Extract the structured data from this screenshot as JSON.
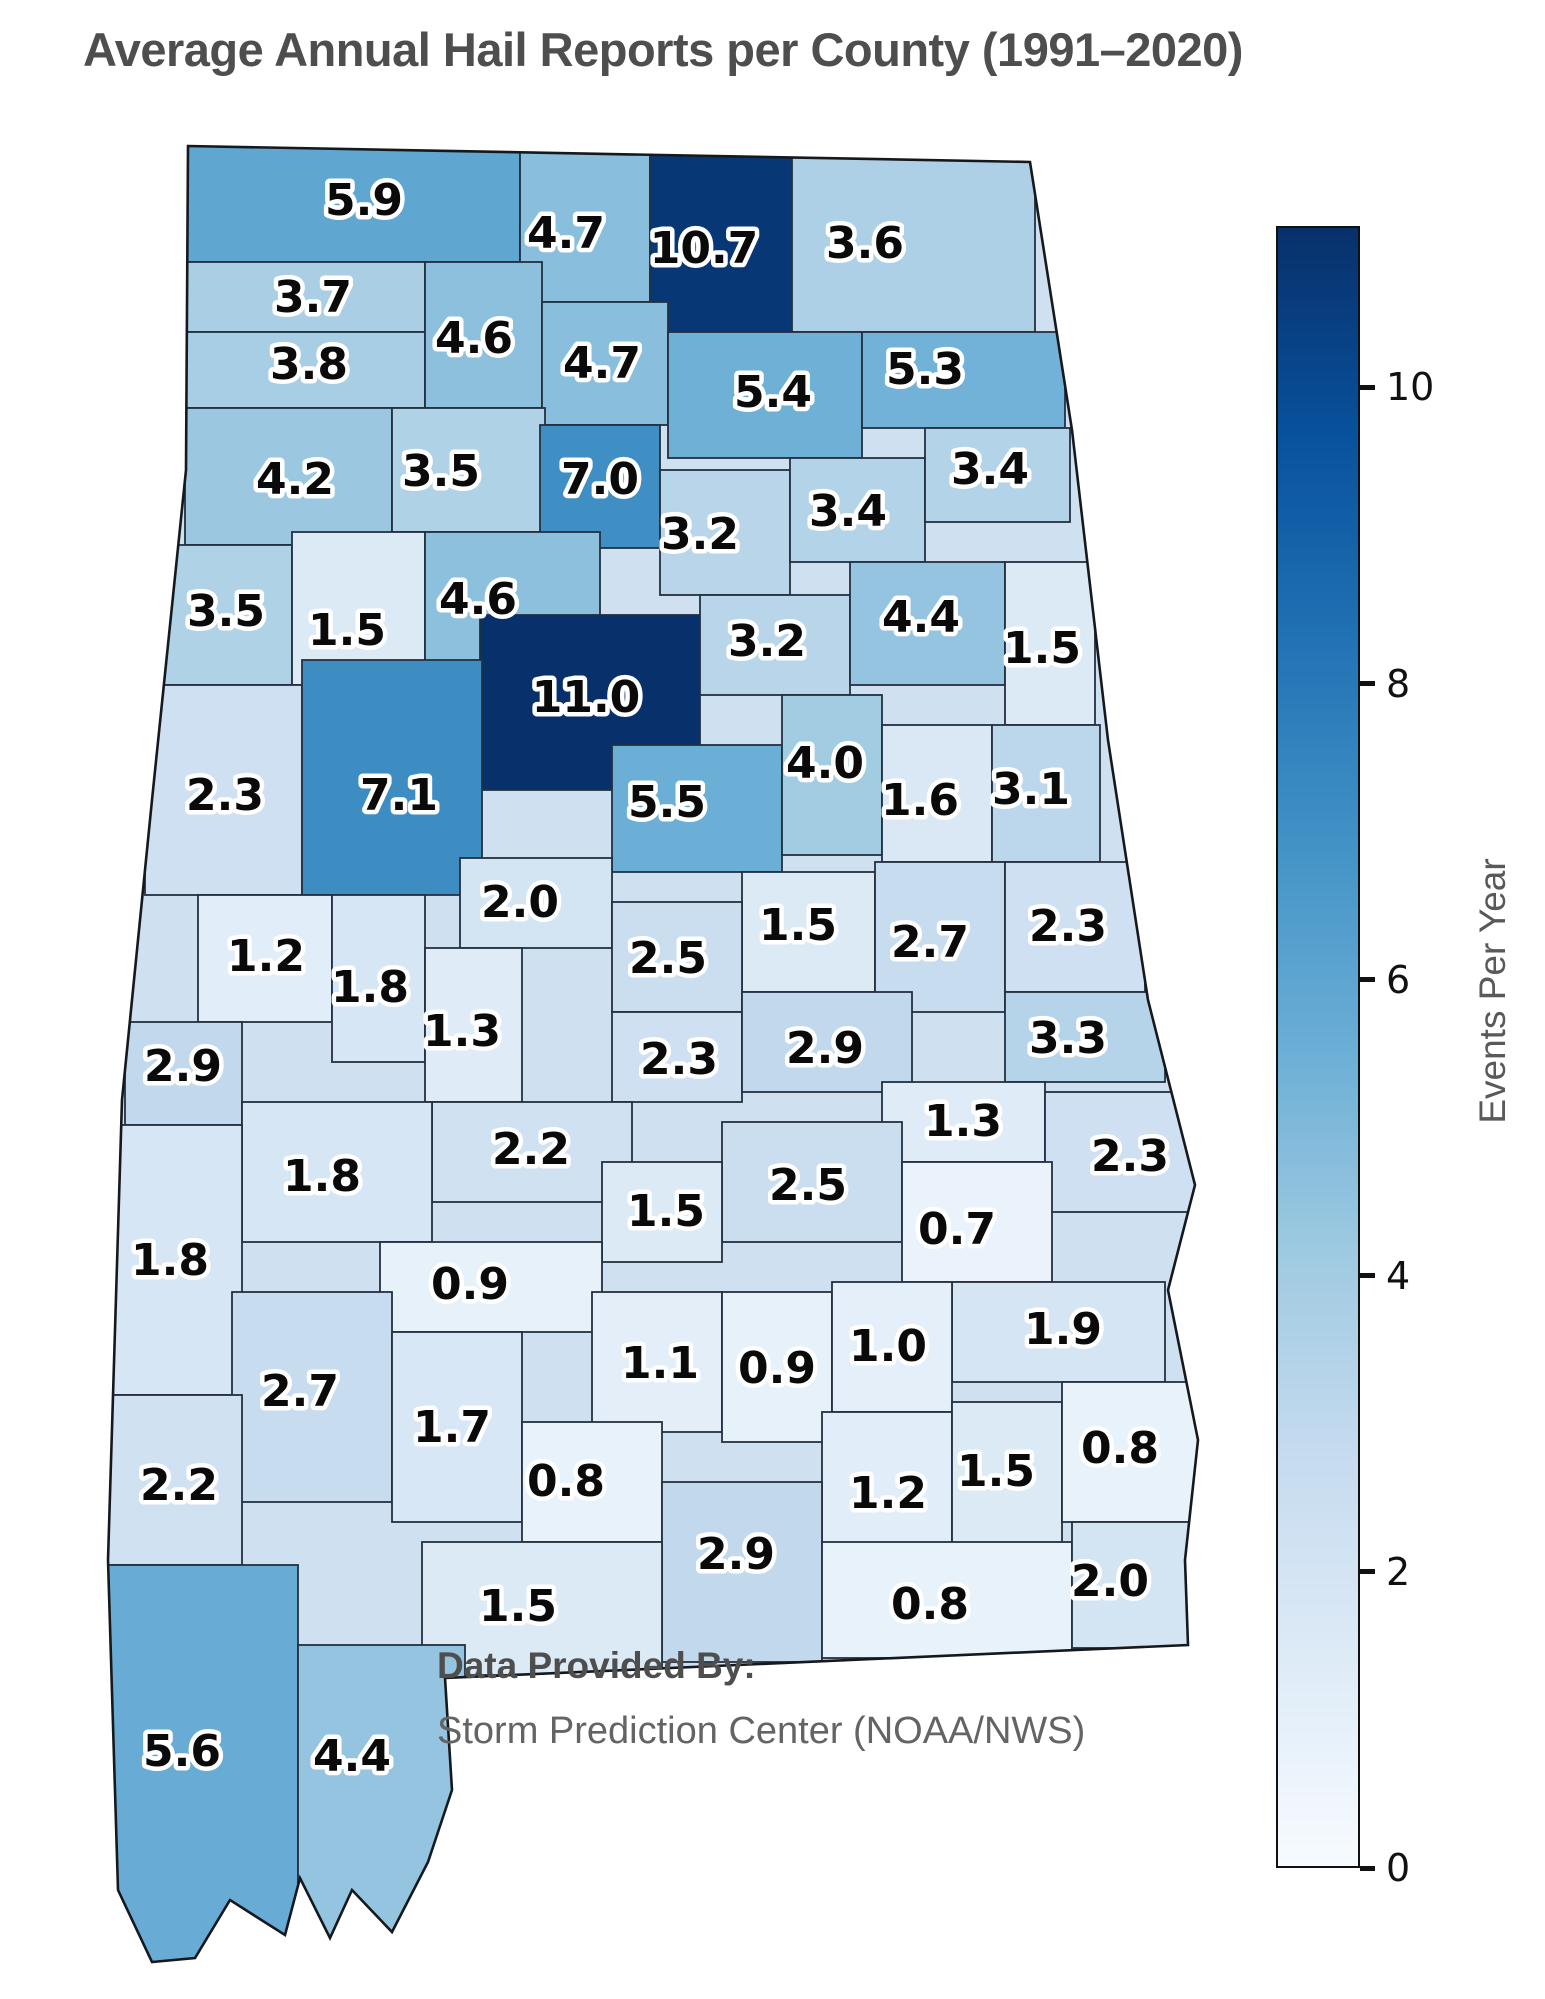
{
  "title": "Average Annual Hail Reports per County (1991–2020)",
  "attribution": {
    "label": "Data Provided By:",
    "source": "Storm Prediction Center (NOAA/NWS)"
  },
  "colorbar": {
    "label": "Events Per Year",
    "ticks": [
      0,
      2,
      4,
      6,
      8,
      10
    ],
    "min_color": "#f7fbff",
    "max_color": "#08306b"
  },
  "chart_data": {
    "type": "heatmap",
    "subtype": "choropleth",
    "region": "Alabama counties",
    "title": "Average Annual Hail Reports per County (1991–2020)",
    "value_label": "Events Per Year",
    "source": "Storm Prediction Center (NOAA/NWS)",
    "colormap": "Blues",
    "vmin": 0,
    "vmax": 11.0,
    "colorbar_ticks": [
      0,
      2,
      4,
      6,
      8,
      10
    ],
    "counties": [
      {
        "v": 5.9,
        "r": [
          150,
          140,
          370,
          122
        ],
        "l": [
          364,
          199
        ]
      },
      {
        "v": 3.7,
        "r": [
          150,
          262,
          275,
          70
        ],
        "l": [
          313,
          296
        ]
      },
      {
        "v": 3.8,
        "r": [
          150,
          332,
          275,
          76
        ],
        "l": [
          309,
          363
        ]
      },
      {
        "v": 4.7,
        "r": [
          520,
          140,
          130,
          162
        ],
        "l": [
          566,
          232
        ]
      },
      {
        "v": 10.7,
        "r": [
          650,
          140,
          142,
          195
        ],
        "l": [
          704,
          247
        ]
      },
      {
        "v": 3.6,
        "r": [
          792,
          140,
          243,
          192
        ],
        "l": [
          865,
          242
        ]
      },
      {
        "v": 4.6,
        "r": [
          425,
          262,
          117,
          146
        ],
        "l": [
          474,
          337
        ]
      },
      {
        "v": 4.7,
        "r": [
          542,
          302,
          126,
          123
        ],
        "l": [
          602,
          362
        ]
      },
      {
        "v": 5.4,
        "r": [
          668,
          332,
          194,
          126
        ],
        "l": [
          773,
          391
        ]
      },
      {
        "v": 5.3,
        "r": [
          862,
          332,
          203,
          96
        ],
        "l": [
          925,
          368
        ]
      },
      {
        "v": 4.2,
        "r": [
          185,
          408,
          207,
          137
        ],
        "l": [
          295,
          478
        ]
      },
      {
        "v": 3.5,
        "r": [
          392,
          408,
          153,
          124
        ],
        "l": [
          441,
          470
        ]
      },
      {
        "v": 7.0,
        "r": [
          540,
          425,
          120,
          123
        ],
        "l": [
          600,
          478
        ]
      },
      {
        "v": 3.2,
        "r": [
          660,
          470,
          130,
          125
        ],
        "l": [
          700,
          533
        ]
      },
      {
        "v": 3.4,
        "r": [
          790,
          458,
          135,
          104
        ],
        "l": [
          848,
          510
        ]
      },
      {
        "v": 3.4,
        "r": [
          925,
          428,
          145,
          94
        ],
        "l": [
          990,
          468
        ]
      },
      {
        "v": 3.5,
        "r": [
          160,
          545,
          132,
          140
        ],
        "l": [
          226,
          610
        ]
      },
      {
        "v": 1.5,
        "r": [
          292,
          532,
          133,
          153
        ],
        "l": [
          347,
          629
        ]
      },
      {
        "v": 4.6,
        "r": [
          425,
          532,
          175,
          133
        ],
        "l": [
          478,
          598
        ]
      },
      {
        "v": 11.0,
        "r": [
          480,
          615,
          220,
          175
        ],
        "l": [
          586,
          696
        ]
      },
      {
        "v": 3.2,
        "r": [
          700,
          595,
          150,
          100
        ],
        "l": [
          767,
          640
        ]
      },
      {
        "v": 4.4,
        "r": [
          850,
          562,
          155,
          123
        ],
        "l": [
          921,
          616
        ]
      },
      {
        "v": 1.5,
        "r": [
          1005,
          562,
          90,
          163
        ],
        "l": [
          1042,
          647
        ]
      },
      {
        "v": 2.3,
        "r": [
          145,
          685,
          157,
          210
        ],
        "l": [
          225,
          794
        ]
      },
      {
        "v": 7.1,
        "r": [
          302,
          660,
          180,
          235
        ],
        "l": [
          399,
          794
        ]
      },
      {
        "v": 5.5,
        "r": [
          612,
          745,
          170,
          127
        ],
        "l": [
          667,
          801
        ]
      },
      {
        "v": 4.0,
        "r": [
          782,
          695,
          100,
          160
        ],
        "l": [
          825,
          762
        ]
      },
      {
        "v": 1.6,
        "r": [
          882,
          725,
          110,
          137
        ],
        "l": [
          920,
          799
        ]
      },
      {
        "v": 3.1,
        "r": [
          992,
          725,
          108,
          137
        ],
        "l": [
          1031,
          788
        ]
      },
      {
        "v": 2.0,
        "r": [
          460,
          858,
          152,
          90
        ],
        "l": [
          520,
          901
        ]
      },
      {
        "v": 1.5,
        "r": [
          742,
          872,
          133,
          120
        ],
        "l": [
          798,
          924
        ]
      },
      {
        "v": 2.7,
        "r": [
          875,
          862,
          130,
          150
        ],
        "l": [
          930,
          941
        ]
      },
      {
        "v": 2.3,
        "r": [
          1005,
          862,
          140,
          130
        ],
        "l": [
          1068,
          925
        ]
      },
      {
        "v": 1.2,
        "r": [
          198,
          895,
          134,
          127
        ],
        "l": [
          266,
          955
        ]
      },
      {
        "v": 1.8,
        "r": [
          332,
          895,
          93,
          167
        ],
        "l": [
          370,
          986
        ]
      },
      {
        "v": 2.5,
        "r": [
          612,
          902,
          130,
          110
        ],
        "l": [
          668,
          957
        ]
      },
      {
        "v": 1.3,
        "r": [
          425,
          948,
          97,
          154
        ],
        "l": [
          462,
          1030
        ]
      },
      {
        "v": 2.9,
        "r": [
          125,
          1022,
          117,
          103
        ],
        "l": [
          183,
          1065
        ]
      },
      {
        "v": 2.3,
        "r": [
          612,
          1012,
          130,
          90
        ],
        "l": [
          679,
          1058
        ]
      },
      {
        "v": 2.9,
        "r": [
          742,
          992,
          170,
          100
        ],
        "l": [
          825,
          1047
        ]
      },
      {
        "v": 3.3,
        "r": [
          1005,
          992,
          160,
          90
        ],
        "l": [
          1068,
          1037
        ]
      },
      {
        "v": 1.3,
        "r": [
          882,
          1082,
          163,
          80
        ],
        "l": [
          963,
          1120
        ]
      },
      {
        "v": 2.2,
        "r": [
          432,
          1102,
          200,
          100
        ],
        "l": [
          531,
          1148
        ]
      },
      {
        "v": 2.3,
        "r": [
          1045,
          1092,
          180,
          120
        ],
        "l": [
          1130,
          1155
        ]
      },
      {
        "v": 1.8,
        "r": [
          242,
          1102,
          190,
          140
        ],
        "l": [
          322,
          1175
        ]
      },
      {
        "v": 2.5,
        "r": [
          722,
          1122,
          180,
          120
        ],
        "l": [
          808,
          1184
        ]
      },
      {
        "v": 1.5,
        "r": [
          602,
          1162,
          120,
          100
        ],
        "l": [
          666,
          1210
        ]
      },
      {
        "v": 0.7,
        "r": [
          902,
          1162,
          150,
          120
        ],
        "l": [
          957,
          1228
        ]
      },
      {
        "v": 1.8,
        "r": [
          108,
          1125,
          134,
          270
        ],
        "l": [
          170,
          1259
        ]
      },
      {
        "v": 0.9,
        "r": [
          380,
          1242,
          222,
          90
        ],
        "l": [
          470,
          1283
        ]
      },
      {
        "v": 1.9,
        "r": [
          952,
          1282,
          213,
          100
        ],
        "l": [
          1063,
          1328
        ]
      },
      {
        "v": 1.1,
        "r": [
          592,
          1292,
          130,
          140
        ],
        "l": [
          660,
          1362
        ]
      },
      {
        "v": 0.9,
        "r": [
          722,
          1292,
          110,
          150
        ],
        "l": [
          777,
          1367
        ]
      },
      {
        "v": 1.0,
        "r": [
          832,
          1282,
          120,
          130
        ],
        "l": [
          888,
          1345
        ]
      },
      {
        "v": 2.7,
        "r": [
          232,
          1292,
          160,
          210
        ],
        "l": [
          300,
          1390
        ]
      },
      {
        "v": 1.7,
        "r": [
          392,
          1332,
          130,
          190
        ],
        "l": [
          452,
          1426
        ]
      },
      {
        "v": 0.8,
        "r": [
          522,
          1422,
          140,
          120
        ],
        "l": [
          566,
          1480
        ]
      },
      {
        "v": 1.2,
        "r": [
          822,
          1412,
          130,
          150
        ],
        "l": [
          888,
          1492
        ]
      },
      {
        "v": 1.5,
        "r": [
          952,
          1402,
          110,
          143
        ],
        "l": [
          996,
          1470
        ]
      },
      {
        "v": 0.8,
        "r": [
          1062,
          1382,
          143,
          140
        ],
        "l": [
          1120,
          1447
        ]
      },
      {
        "v": 2.2,
        "r": [
          105,
          1395,
          137,
          170
        ],
        "l": [
          179,
          1484
        ]
      },
      {
        "v": 2.9,
        "r": [
          662,
          1482,
          160,
          180
        ],
        "l": [
          736,
          1553
        ]
      },
      {
        "v": 1.5,
        "r": [
          422,
          1542,
          240,
          133
        ],
        "l": [
          518,
          1605
        ]
      },
      {
        "v": 0.8,
        "r": [
          822,
          1542,
          250,
          116
        ],
        "l": [
          930,
          1603
        ]
      },
      {
        "v": 2.0,
        "r": [
          1072,
          1522,
          143,
          126
        ],
        "l": [
          1110,
          1580
        ]
      },
      {
        "v": 5.6,
        "r": [
          105,
          1565,
          193,
          400
        ],
        "l": [
          182,
          1750
        ]
      },
      {
        "v": 4.4,
        "r": [
          298,
          1645,
          167,
          295
        ],
        "l": [
          352,
          1755
        ]
      }
    ]
  }
}
